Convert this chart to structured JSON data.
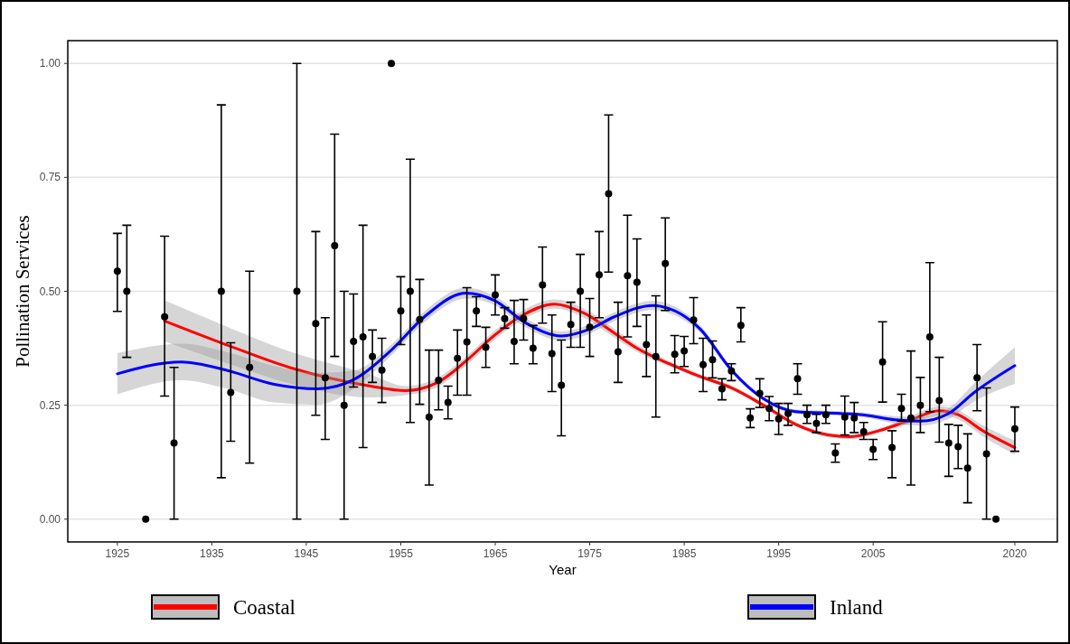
{
  "chart_data": {
    "type": "scatter",
    "xlabel": "Year",
    "ylabel": "Pollination Services",
    "xlim": [
      1919.75,
      2024.5
    ],
    "ylim": [
      -0.05,
      1.05
    ],
    "xticks": [
      1925,
      1935,
      1945,
      1955,
      1965,
      1975,
      1985,
      1995,
      2005,
      2020
    ],
    "yticks": [
      {
        "value": 0,
        "label": "0.00"
      },
      {
        "value": 0.25,
        "label": "0.25"
      },
      {
        "value": 0.5,
        "label": "0.50"
      },
      {
        "value": 0.75,
        "label": "0.75"
      },
      {
        "value": 1,
        "label": "1.00"
      }
    ],
    "grid": "y",
    "legend": "bottom",
    "series": [
      {
        "marker": "circle",
        "color": "#000000",
        "x": [
          1925,
          1926,
          1928,
          1930,
          1931,
          1936,
          1937,
          1939,
          1944,
          1946,
          1947,
          1948,
          1949,
          1950,
          1951,
          1952,
          1953,
          1954,
          1955,
          1956,
          1957,
          1958,
          1959,
          1960,
          1961,
          1962,
          1963,
          1964,
          1965,
          1966,
          1967,
          1968,
          1969,
          1970,
          1971,
          1972,
          1973,
          1974,
          1975,
          1976,
          1977,
          1978,
          1979,
          1980,
          1981,
          1982,
          1983,
          1984,
          1985,
          1986,
          1987,
          1988,
          1989,
          1990,
          1991,
          1992,
          1993,
          1994,
          1995,
          1996,
          1997,
          1998,
          1999,
          2000,
          2001,
          2002,
          2003,
          2004,
          2005,
          2006,
          2007,
          2008,
          2009,
          2010,
          2011,
          2012,
          2013,
          2014,
          2015,
          2016,
          2017,
          2018,
          2020
        ],
        "values": [
          0.544,
          0.5,
          0,
          0.444,
          0.167,
          0.5,
          0.278,
          0.333,
          0.5,
          0.429,
          0.31,
          0.6,
          0.25,
          0.39,
          0.4,
          0.357,
          0.327,
          1,
          0.457,
          0.5,
          0.438,
          0.224,
          0.305,
          0.256,
          0.353,
          0.389,
          0.457,
          0.377,
          0.492,
          0.44,
          0.39,
          0.44,
          0.375,
          0.514,
          0.363,
          0.294,
          0.427,
          0.5,
          0.421,
          0.536,
          0.714,
          0.367,
          0.534,
          0.52,
          0.383,
          0.357,
          0.561,
          0.362,
          0.369,
          0.437,
          0.339,
          0.35,
          0.286,
          0.325,
          0.425,
          0.222,
          0.276,
          0.243,
          0.22,
          0.232,
          0.308,
          0.229,
          0.21,
          0.229,
          0.145,
          0.224,
          0.222,
          0.192,
          0.153,
          0.345,
          0.157,
          0.243,
          0.222,
          0.25,
          0.4,
          0.26,
          0.167,
          0.159,
          0.112,
          0.31,
          0.143,
          0,
          0.198
        ],
        "errors": [
          [
            0.456,
            0.627
          ],
          [
            0.355,
            0.645
          ],
          null,
          [
            0.27,
            0.621
          ],
          [
            0,
            0.333
          ],
          [
            0.091,
            0.909
          ],
          [
            0.171,
            0.387
          ],
          [
            0.123,
            0.544
          ],
          [
            0,
            1
          ],
          [
            0.228,
            0.631
          ],
          [
            0.175,
            0.442
          ],
          [
            0.357,
            0.845
          ],
          [
            0,
            0.5
          ],
          [
            0.29,
            0.494
          ],
          [
            0.157,
            0.645
          ],
          [
            0.3,
            0.415
          ],
          [
            0.256,
            0.397
          ],
          null,
          [
            0.383,
            0.532
          ],
          [
            0.212,
            0.79
          ],
          [
            0.252,
            0.526
          ],
          [
            0.075,
            0.371
          ],
          [
            0.24,
            0.371
          ],
          [
            0.22,
            0.292
          ],
          [
            0.272,
            0.415
          ],
          [
            0.272,
            0.508
          ],
          [
            0.423,
            0.488
          ],
          [
            0.333,
            0.421
          ],
          [
            0.448,
            0.536
          ],
          [
            0.419,
            0.464
          ],
          [
            0.341,
            0.48
          ],
          [
            0.393,
            0.482
          ],
          [
            0.341,
            0.425
          ],
          [
            0.43,
            0.597
          ],
          [
            0.28,
            0.448
          ],
          [
            0.183,
            0.393
          ],
          [
            0.377,
            0.476
          ],
          [
            0.377,
            0.581
          ],
          [
            0.357,
            0.484
          ],
          [
            0.442,
            0.631
          ],
          [
            0.542,
            0.887
          ],
          [
            0.3,
            0.476
          ],
          [
            0.4,
            0.667
          ],
          [
            0.423,
            0.615
          ],
          [
            0.313,
            0.448
          ],
          [
            0.224,
            0.49
          ],
          [
            0.458,
            0.661
          ],
          [
            0.321,
            0.403
          ],
          [
            0.335,
            0.401
          ],
          [
            0.385,
            0.486
          ],
          [
            0.28,
            0.397
          ],
          [
            0.31,
            0.391
          ],
          [
            0.262,
            0.308
          ],
          [
            0.304,
            0.341
          ],
          [
            0.389,
            0.464
          ],
          [
            0.201,
            0.242
          ],
          [
            0.245,
            0.308
          ],
          [
            0.216,
            0.269
          ],
          [
            0.186,
            0.254
          ],
          [
            0.206,
            0.254
          ],
          [
            0.274,
            0.341
          ],
          [
            0.21,
            0.25
          ],
          [
            0.19,
            0.23
          ],
          [
            0.21,
            0.25
          ],
          [
            0.125,
            0.165
          ],
          [
            0.185,
            0.27
          ],
          [
            0.19,
            0.256
          ],
          [
            0.175,
            0.212
          ],
          [
            0.131,
            0.175
          ],
          [
            0.257,
            0.433
          ],
          [
            0.091,
            0.194
          ],
          [
            0.215,
            0.274
          ],
          [
            0.075,
            0.369
          ],
          [
            0.19,
            0.311
          ],
          [
            0.236,
            0.563
          ],
          [
            0.169,
            0.355
          ],
          [
            0.094,
            0.208
          ],
          [
            0.111,
            0.206
          ],
          [
            0.036,
            0.187
          ],
          [
            0.238,
            0.383
          ],
          [
            0,
            0.288
          ],
          null,
          [
            0.149,
            0.246
          ]
        ]
      },
      {
        "type": "line",
        "name": "Coastal",
        "color": "#ff0000",
        "x": [
          1930,
          1936.5,
          1943.2,
          1951.8,
          1955.5,
          1958.9,
          1961.9,
          1964.9,
          1967.6,
          1971.3,
          1974.4,
          1977.7,
          1980,
          1983.4,
          1986.7,
          1990,
          1993.4,
          1996.8,
          2000.2,
          2002.6,
          2005.6,
          2009,
          2012,
          2014,
          2016.6,
          2020
        ],
        "values": [
          0.435,
          0.383,
          0.333,
          0.292,
          0.282,
          0.3,
          0.347,
          0.403,
          0.444,
          0.472,
          0.452,
          0.407,
          0.375,
          0.341,
          0.313,
          0.288,
          0.25,
          0.208,
          0.185,
          0.181,
          0.194,
          0.218,
          0.238,
          0.229,
          0.194,
          0.157
        ],
        "lower": [
          0.39,
          0.343,
          0.298,
          0.267,
          0.272,
          0.29,
          0.337,
          0.393,
          0.434,
          0.462,
          0.442,
          0.397,
          0.367,
          0.335,
          0.308,
          0.283,
          0.245,
          0.203,
          0.18,
          0.176,
          0.189,
          0.21,
          0.228,
          0.219,
          0.182,
          0.142
        ],
        "upper": [
          0.48,
          0.423,
          0.368,
          0.317,
          0.292,
          0.31,
          0.357,
          0.413,
          0.454,
          0.482,
          0.462,
          0.417,
          0.383,
          0.347,
          0.318,
          0.293,
          0.255,
          0.213,
          0.19,
          0.186,
          0.199,
          0.226,
          0.248,
          0.239,
          0.206,
          0.172
        ]
      },
      {
        "type": "line",
        "name": "Inland",
        "color": "#0000ff",
        "x": [
          1925,
          1931.8,
          1936.5,
          1941.6,
          1946.2,
          1950,
          1954.2,
          1957.5,
          1961.9,
          1964.9,
          1968.2,
          1972,
          1975,
          1977.6,
          1981.7,
          1983.4,
          1986.7,
          1990,
          1993.4,
          1996.8,
          2001.5,
          2003.9,
          2007.3,
          2010,
          2013,
          2015.7,
          2020
        ],
        "values": [
          0.319,
          0.345,
          0.327,
          0.296,
          0.286,
          0.306,
          0.375,
          0.444,
          0.496,
          0.48,
          0.431,
          0.402,
          0.417,
          0.444,
          0.469,
          0.462,
          0.417,
          0.327,
          0.264,
          0.236,
          0.232,
          0.229,
          0.218,
          0.215,
          0.232,
          0.278,
          0.337
        ],
        "lower": [
          0.274,
          0.305,
          0.287,
          0.256,
          0.251,
          0.286,
          0.363,
          0.432,
          0.484,
          0.47,
          0.421,
          0.392,
          0.407,
          0.434,
          0.459,
          0.452,
          0.409,
          0.321,
          0.259,
          0.231,
          0.227,
          0.224,
          0.21,
          0.205,
          0.22,
          0.258,
          0.297
        ],
        "upper": [
          0.364,
          0.385,
          0.367,
          0.336,
          0.321,
          0.326,
          0.387,
          0.456,
          0.508,
          0.49,
          0.441,
          0.412,
          0.427,
          0.454,
          0.479,
          0.472,
          0.425,
          0.333,
          0.269,
          0.241,
          0.237,
          0.234,
          0.226,
          0.225,
          0.244,
          0.298,
          0.377
        ]
      }
    ]
  }
}
